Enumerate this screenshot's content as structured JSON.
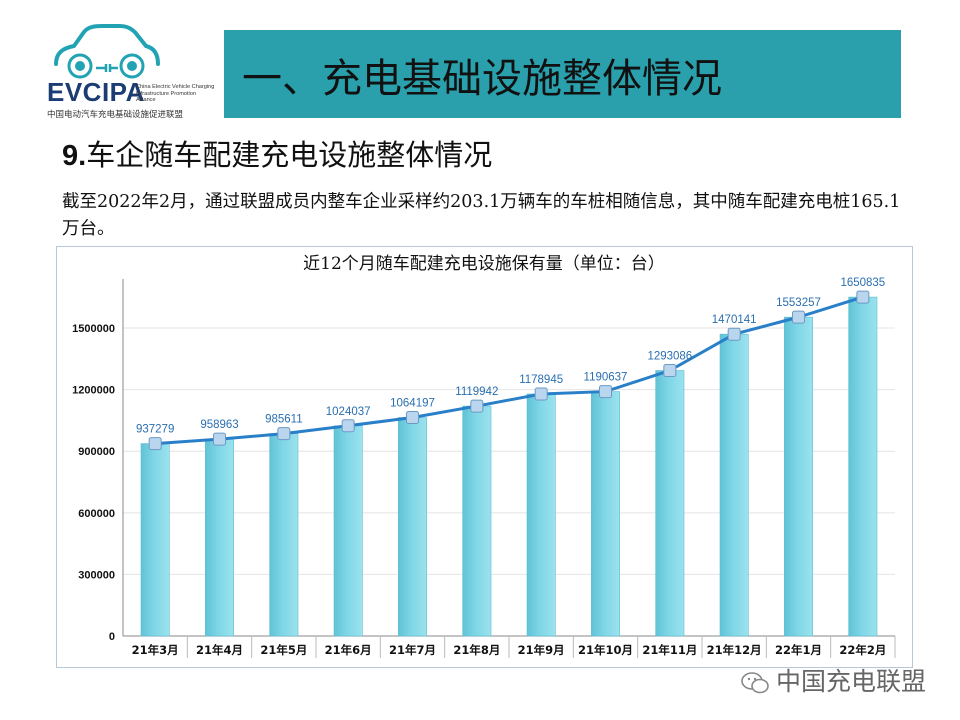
{
  "logo": {
    "brand": "EVCIPA",
    "english_name": "China Electric Vehicle Charging Infrastructure Promotion Alliance",
    "chinese_name": "中国电动汽车充电基础设施促进联盟"
  },
  "header": {
    "title": "一、充电基础设施整体情况"
  },
  "section": {
    "number": "9.",
    "title": "车企随车配建充电设施整体情况",
    "description": "截至2022年2月，通过联盟成员内整车企业采样约203.1万辆车的车桩相随信息，其中随车配建充电桩165.1万台。"
  },
  "chart_data": {
    "type": "bar",
    "title": "近12个月随车配建充电设施保有量（单位：台）",
    "categories": [
      "21年3月",
      "21年4月",
      "21年5月",
      "21年6月",
      "21年7月",
      "21年8月",
      "21年9月",
      "21年10月",
      "21年11月",
      "21年12月",
      "22年1月",
      "22年2月"
    ],
    "values": [
      937279,
      958963,
      985611,
      1024037,
      1064197,
      1119942,
      1178945,
      1190637,
      1293086,
      1470141,
      1553257,
      1650835
    ],
    "line_overlay": true,
    "ylim": [
      0,
      1700000
    ],
    "yticks": [
      0,
      300000,
      600000,
      900000,
      1200000,
      1500000
    ],
    "xlabel": "",
    "ylabel": "",
    "colors": {
      "bar": "#7fd6e6",
      "bar_edge": "#5bbdd0",
      "line": "#2a7fc9",
      "marker": "#b9d6ee",
      "label": "#2a6fb0"
    }
  },
  "watermark": {
    "text": "中国充电联盟"
  }
}
